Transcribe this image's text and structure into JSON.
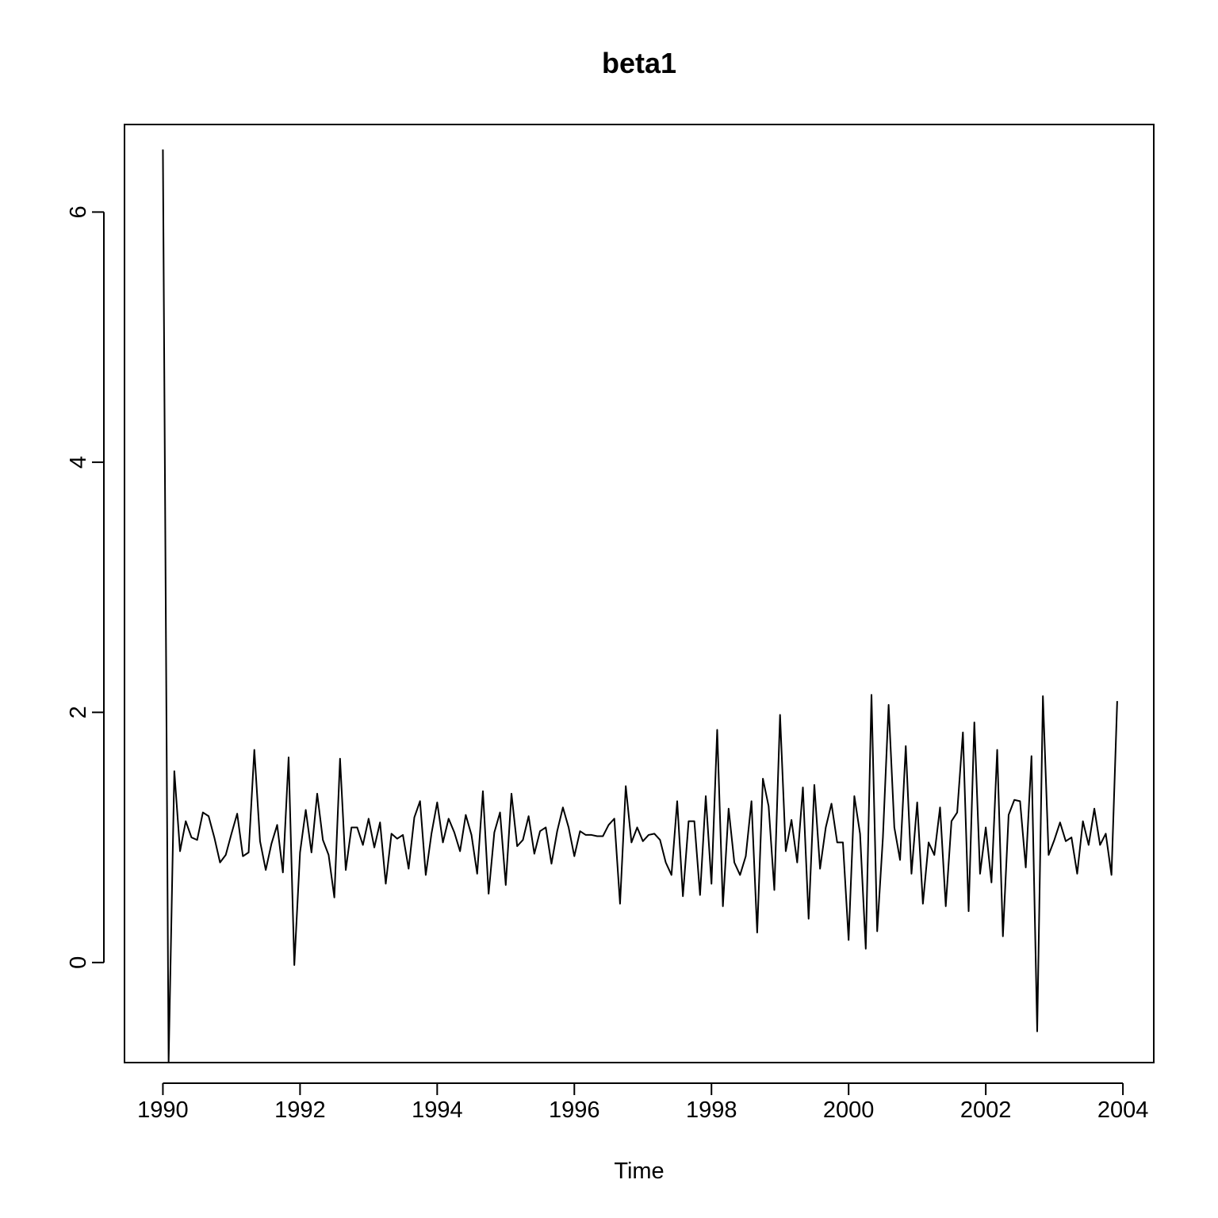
{
  "chart_data": {
    "type": "line",
    "title": "beta1",
    "xlabel": "Time",
    "ylabel": "",
    "x_start": 1990,
    "frequency": 12,
    "xlim": [
      1989.44,
      2004.45
    ],
    "ylim": [
      -0.8,
      6.7
    ],
    "x_ticks": [
      1990,
      1992,
      1994,
      1996,
      1998,
      2000,
      2002,
      2004
    ],
    "y_ticks": [
      0,
      2,
      4,
      6
    ],
    "grid": false,
    "legend": "none",
    "line_color": "#000000",
    "values": [
      6.5,
      -0.8,
      1.53,
      0.89,
      1.13,
      1.0,
      0.98,
      1.2,
      1.17,
      1.0,
      0.8,
      0.86,
      1.03,
      1.19,
      0.85,
      0.88,
      1.7,
      0.97,
      0.74,
      0.95,
      1.1,
      0.72,
      1.64,
      -0.02,
      0.88,
      1.22,
      0.88,
      1.35,
      0.98,
      0.86,
      0.52,
      1.63,
      0.74,
      1.08,
      1.08,
      0.94,
      1.15,
      0.92,
      1.12,
      0.63,
      1.03,
      0.99,
      1.02,
      0.75,
      1.16,
      1.29,
      0.7,
      1.03,
      1.28,
      0.96,
      1.15,
      1.04,
      0.89,
      1.18,
      1.02,
      0.71,
      1.37,
      0.55,
      1.04,
      1.2,
      0.62,
      1.35,
      0.93,
      0.98,
      1.17,
      0.87,
      1.05,
      1.08,
      0.79,
      1.05,
      1.24,
      1.08,
      0.85,
      1.05,
      1.02,
      1.02,
      1.01,
      1.01,
      1.1,
      1.15,
      0.47,
      1.41,
      0.96,
      1.08,
      0.97,
      1.02,
      1.03,
      0.98,
      0.8,
      0.7,
      1.29,
      0.53,
      1.13,
      1.13,
      0.54,
      1.33,
      0.63,
      1.86,
      0.45,
      1.23,
      0.8,
      0.7,
      0.85,
      1.29,
      0.24,
      1.47,
      1.25,
      0.58,
      1.98,
      0.89,
      1.14,
      0.8,
      1.4,
      0.35,
      1.42,
      0.75,
      1.08,
      1.27,
      0.96,
      0.96,
      0.18,
      1.33,
      1.03,
      0.11,
      2.14,
      0.25,
      1.0,
      2.06,
      1.08,
      0.82,
      1.73,
      0.71,
      1.28,
      0.47,
      0.96,
      0.86,
      1.24,
      0.45,
      1.13,
      1.2,
      1.84,
      0.41,
      1.92,
      0.71,
      1.08,
      0.64,
      1.7,
      0.21,
      1.18,
      1.3,
      1.29,
      0.76,
      1.65,
      -0.55,
      2.13,
      0.86,
      0.98,
      1.12,
      0.97,
      1.0,
      0.71,
      1.13,
      0.94,
      1.23,
      0.94,
      1.03,
      0.7,
      2.09
    ]
  }
}
